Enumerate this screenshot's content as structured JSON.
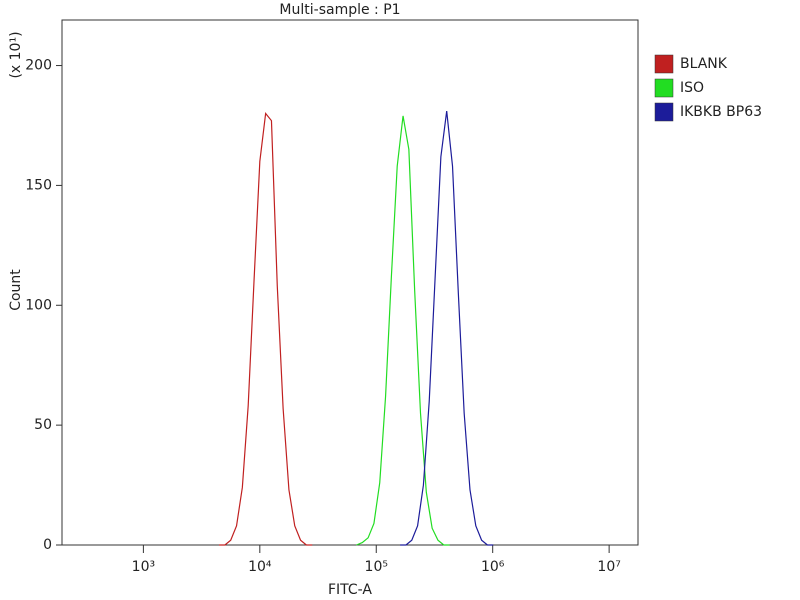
{
  "chart_data": {
    "type": "line",
    "title": "Multi-sample : P1",
    "x_label": "FITC-A",
    "y_label": "Count",
    "y_multiplier": "(x 10¹)",
    "x_scale": "log",
    "xlim": [
      200,
      17700000
    ],
    "xticks": [
      {
        "value": 1000,
        "label": "10³"
      },
      {
        "value": 10000,
        "label": "10⁴"
      },
      {
        "value": 100000,
        "label": "10⁵"
      },
      {
        "value": 1000000,
        "label": "10⁶"
      },
      {
        "value": 10000000,
        "label": "10⁷"
      }
    ],
    "ylim": [
      0,
      219
    ],
    "yticks": [
      0,
      50,
      100,
      150,
      200
    ],
    "legend": "right",
    "series": [
      {
        "name": "BLANK",
        "color": "#c02020",
        "x": [
          4467,
          5012,
          5623,
          6310,
          7079,
          7943,
          8913,
          10000,
          11220,
          12589,
          14125,
          15849,
          17783,
          19953,
          22387,
          25119,
          28184
        ],
        "values": [
          0,
          0,
          2,
          8,
          24,
          58,
          110,
          160,
          180,
          177,
          108,
          57,
          23,
          8,
          2,
          0,
          0
        ]
      },
      {
        "name": "ISO",
        "color": "#22dd22",
        "x": [
          67608,
          75858,
          85114,
          95499,
          107152,
          120226,
          134896,
          151356,
          169824,
          190546,
          213796,
          239883,
          269153,
          301995,
          338844,
          380189,
          426580
        ],
        "values": [
          0,
          1,
          3,
          9,
          26,
          62,
          112,
          158,
          179,
          165,
          106,
          55,
          22,
          7,
          2,
          0,
          0
        ]
      },
      {
        "name": "IKBKB BP63",
        "color": "#1c1c9a",
        "x": [
          160325,
          179887,
          201837,
          226464,
          254097,
          285102,
          319890,
          358922,
          402717,
          451856,
          507000,
          568853,
          638263,
          716143,
          803526,
          901571,
          1011579
        ],
        "values": [
          0,
          0,
          2,
          8,
          25,
          60,
          111,
          162,
          181,
          158,
          105,
          55,
          23,
          8,
          2,
          0,
          0
        ]
      }
    ]
  }
}
